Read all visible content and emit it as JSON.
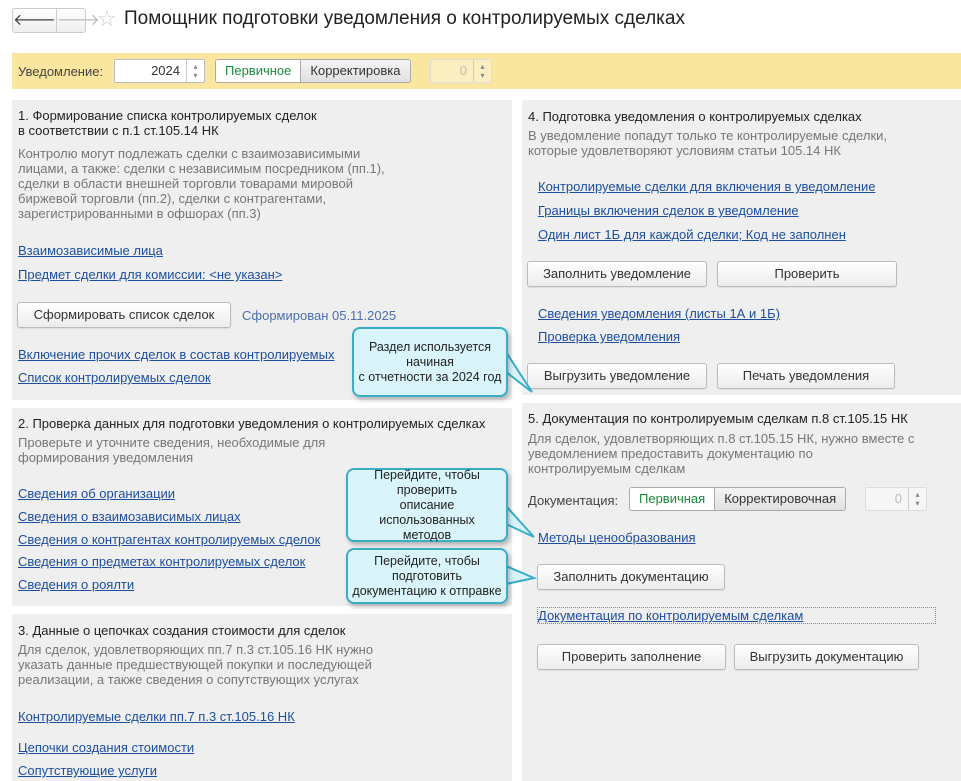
{
  "header": {
    "title": "Помощник подготовки уведомления о контролируемых сделках",
    "back_icon": "arrow-left-icon",
    "forward_icon": "arrow-right-icon",
    "favorite_icon": "star-icon"
  },
  "toolbar": {
    "label": "Уведомление:",
    "year": "2024",
    "primary": "Первичное",
    "correction": "Корректировка",
    "correction_number": "0"
  },
  "s1": {
    "title1": "1. Формирование списка контролируемых сделок",
    "title2": "в соответствии с п.1 ст.105.14 НК",
    "desc": [
      "Контролю могут подлежать сделки с взаимозависимыми",
      "лицами, а также: сделки с независимым посредником (пп.1),",
      "сделки в области внешней торговли товарами мировой",
      "биржевой торговли (пп.2), сделки с контрагентами,",
      "зарегистрированными в офшорах (пп.3)"
    ],
    "link1": "Взаимозависимые лица",
    "link2": "Предмет сделки для комиссии: <не указан>",
    "button": "Сформировать список сделок",
    "status": "Сформирован 05.11.2025",
    "link3": "Включение прочих сделок в состав контролируемых",
    "link4": "Список контролируемых сделок"
  },
  "s2": {
    "title": "2. Проверка данных для подготовки уведомления о контролируемых сделках",
    "desc": [
      "Проверьте и уточните сведения, необходимые для",
      "формирования уведомления"
    ],
    "links": [
      "Сведения об организации",
      "Сведения о взаимозависимых лицах",
      "Сведения о контрагентах контролируемых сделок",
      "Сведения о предметах контролируемых сделок",
      "Сведения о роялти"
    ]
  },
  "s3": {
    "title": "3. Данные о цепочках создания стоимости для сделок",
    "desc": [
      "Для сделок, удовлетворяющих пп.7 п.3 ст.105.16 НК нужно",
      "указать данные предшествующей покупки и последующей",
      "реализации, а также сведения о сопутствующих услугах"
    ],
    "link1": "Контролируемые сделки пп.7 п.3 ст.105.16 НК",
    "link2": "Цепочки создания стоимости",
    "link3": "Сопутствующие услуги"
  },
  "s4": {
    "title": "4. Подготовка уведомления о контролируемых сделках",
    "desc": [
      "В уведомление попадут только те контролируемые сделки,",
      "которые удовлетворяют условиям статьи 105.14 НК"
    ],
    "links": [
      "Контролируемые сделки для включения в уведомление",
      "Границы включения сделок в уведомление",
      "Один лист 1Б для каждой сделки; Код не заполнен"
    ],
    "fill": "Заполнить уведомление",
    "check": "Проверить",
    "link4": "Сведения уведомления (листы 1А и 1Б)",
    "link5": "Проверка уведомления",
    "export": "Выгрузить уведомление",
    "print": "Печать уведомления"
  },
  "s5": {
    "title": "5. Документация по контролируемым сделкам п.8 ст.105.15 НК",
    "desc": [
      "Для сделок, удовлетворяющих п.8 ст.105.15 НК, нужно вместе с",
      "уведомлением предоставить документацию по",
      "контролируемым сделкам"
    ],
    "doc_label": "Документация:",
    "primary": "Первичная",
    "correction": "Корректировочная",
    "correction_number": "0",
    "link_methods": "Методы ценообразования",
    "fill": "Заполнить документацию",
    "link_docs": "Документация по контролируемым сделкам",
    "check": "Проверить заполнение",
    "export": "Выгрузить документацию"
  },
  "callouts": {
    "c1": [
      "Раздел используется начиная",
      "с отчетности за 2024 год"
    ],
    "c2": [
      "Перейдите, чтобы проверить",
      "описание использованных",
      "методов"
    ],
    "c3": [
      "Перейдите, чтобы",
      "подготовить",
      "документацию к отправке"
    ]
  }
}
